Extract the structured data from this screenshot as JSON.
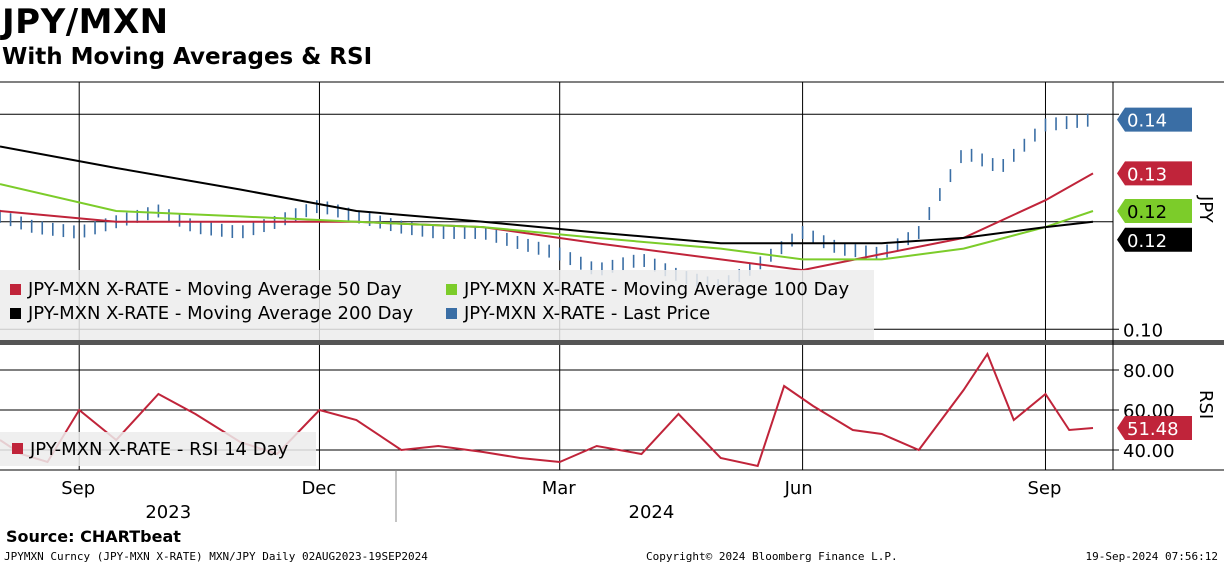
{
  "header": {
    "title": "JPY/MXN",
    "subtitle": "With Moving Averages & RSI"
  },
  "source": "Source: CHARTbeat",
  "footer": {
    "left": "JPYMXN Curncy (JPY-MXN X-RATE) MXN/JPY  Daily 02AUG2023-19SEP2024",
    "center": "Copyright© 2024 Bloomberg Finance L.P.",
    "right": "19-Sep-2024 07:56:12"
  },
  "colors": {
    "last_price": "#3a6ea5",
    "ma50": "#c0243a",
    "ma100": "#7ccc2a",
    "ma200": "#000000",
    "rsi": "#c0243a"
  },
  "chart_data": [
    {
      "type": "bar",
      "panel": "price",
      "x_range": [
        "2023-08-02",
        "2024-09-19"
      ],
      "ylim": [
        0.098,
        0.146
      ],
      "y_ticks": [
        "0.14",
        "0.10"
      ],
      "right_axis_label": "JPY",
      "x_month_labels": [
        "Sep",
        "Dec",
        "Mar",
        "Jun",
        "Sep"
      ],
      "x_month_dates": [
        "2023-09-01",
        "2023-12-01",
        "2024-03-01",
        "2024-06-01",
        "2024-09-01"
      ],
      "x_year_labels": [
        "2023",
        "2024"
      ],
      "x_year_dates": [
        "2023-10-15",
        "2024-04-15"
      ],
      "grid": true,
      "legend_position": "bottom-left",
      "series": [
        {
          "name": "JPY-MXN X-RATE - Last Price",
          "color_key": "last_price",
          "last_value": "0.14",
          "dates": [
            "2023-08-02",
            "2023-08-15",
            "2023-09-01",
            "2023-09-15",
            "2023-10-01",
            "2023-10-15",
            "2023-11-01",
            "2023-11-15",
            "2023-12-01",
            "2023-12-15",
            "2024-01-01",
            "2024-01-15",
            "2024-02-01",
            "2024-02-15",
            "2024-03-01",
            "2024-03-15",
            "2024-04-01",
            "2024-04-15",
            "2024-05-01",
            "2024-05-15",
            "2024-06-01",
            "2024-06-15",
            "2024-07-01",
            "2024-07-15",
            "2024-08-01",
            "2024-08-15",
            "2024-09-01",
            "2024-09-19"
          ],
          "values": [
            0.121,
            0.119,
            0.118,
            0.12,
            0.122,
            0.119,
            0.118,
            0.12,
            0.123,
            0.121,
            0.119,
            0.118,
            0.118,
            0.116,
            0.114,
            0.111,
            0.113,
            0.11,
            0.108,
            0.112,
            0.118,
            0.115,
            0.114,
            0.118,
            0.133,
            0.13,
            0.138,
            0.139
          ]
        },
        {
          "name": "JPY-MXN X-RATE - Moving Average 50 Day",
          "color_key": "ma50",
          "last_value": "0.13",
          "dates": [
            "2023-08-02",
            "2023-09-15",
            "2023-11-01",
            "2023-12-15",
            "2024-02-01",
            "2024-03-15",
            "2024-05-01",
            "2024-06-01",
            "2024-07-01",
            "2024-08-01",
            "2024-09-01",
            "2024-09-19"
          ],
          "values": [
            0.122,
            0.12,
            0.12,
            0.12,
            0.119,
            0.116,
            0.113,
            0.111,
            0.114,
            0.117,
            0.124,
            0.129
          ]
        },
        {
          "name": "JPY-MXN X-RATE - Moving Average 100 Day",
          "color_key": "ma100",
          "last_value": "0.12",
          "dates": [
            "2023-08-02",
            "2023-09-15",
            "2023-11-01",
            "2023-12-15",
            "2024-02-01",
            "2024-03-15",
            "2024-05-01",
            "2024-06-01",
            "2024-07-01",
            "2024-08-01",
            "2024-09-01",
            "2024-09-19"
          ],
          "values": [
            0.127,
            0.122,
            0.121,
            0.12,
            0.119,
            0.117,
            0.115,
            0.113,
            0.113,
            0.115,
            0.119,
            0.122
          ]
        },
        {
          "name": "JPY-MXN X-RATE - Moving Average 200 Day",
          "color_key": "ma200",
          "last_value": "0.12",
          "dates": [
            "2023-08-02",
            "2023-09-15",
            "2023-11-01",
            "2023-12-15",
            "2024-02-01",
            "2024-03-15",
            "2024-05-01",
            "2024-06-01",
            "2024-07-01",
            "2024-08-01",
            "2024-09-01",
            "2024-09-19"
          ],
          "values": [
            0.134,
            0.13,
            0.126,
            0.122,
            0.12,
            0.118,
            0.116,
            0.116,
            0.116,
            0.117,
            0.119,
            0.12
          ]
        }
      ]
    },
    {
      "type": "line",
      "panel": "rsi",
      "x_range": [
        "2023-08-02",
        "2024-09-19"
      ],
      "ylim": [
        30,
        92
      ],
      "y_ticks": [
        "80.00",
        "60.00",
        "40.00"
      ],
      "right_axis_label": "RSI",
      "legend_position": "bottom-left",
      "series": [
        {
          "name": "JPY-MXN X-RATE - RSI 14 Day",
          "color_key": "rsi",
          "last_value": "51.48",
          "dates": [
            "2023-08-02",
            "2023-08-10",
            "2023-08-20",
            "2023-09-01",
            "2023-09-15",
            "2023-10-01",
            "2023-10-15",
            "2023-11-01",
            "2023-11-15",
            "2023-12-01",
            "2023-12-15",
            "2024-01-01",
            "2024-01-15",
            "2024-02-01",
            "2024-02-15",
            "2024-03-01",
            "2024-03-15",
            "2024-04-01",
            "2024-04-15",
            "2024-05-01",
            "2024-05-15",
            "2024-05-25",
            "2024-06-05",
            "2024-06-20",
            "2024-07-01",
            "2024-07-15",
            "2024-08-01",
            "2024-08-10",
            "2024-08-20",
            "2024-09-01",
            "2024-09-10",
            "2024-09-19"
          ],
          "values": [
            45,
            38,
            34,
            60,
            45,
            68,
            58,
            44,
            38,
            60,
            55,
            40,
            42,
            39,
            36,
            34,
            42,
            38,
            58,
            36,
            32,
            72,
            62,
            50,
            48,
            40,
            70,
            88,
            55,
            68,
            50,
            51
          ]
        }
      ]
    }
  ]
}
